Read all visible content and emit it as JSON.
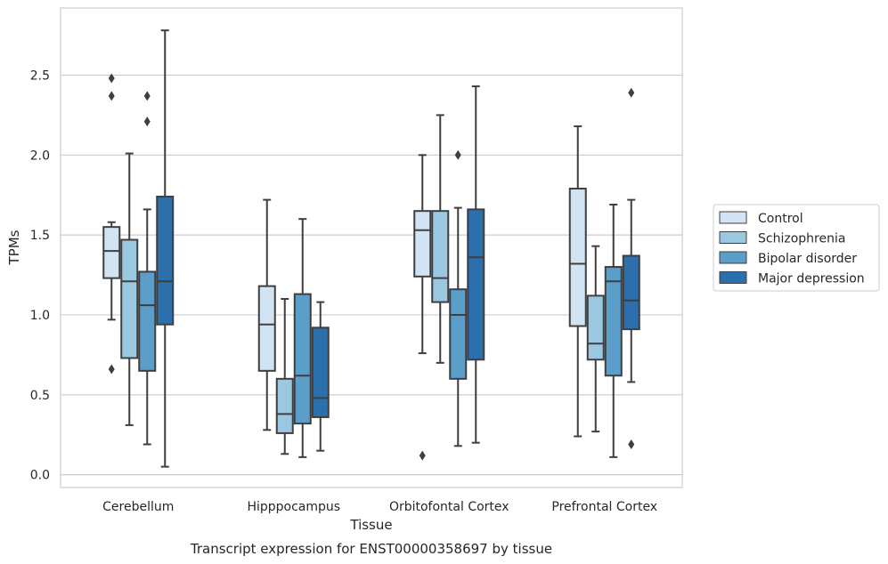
{
  "chart_data": {
    "type": "box",
    "caption": "Transcript expression for ENST00000358697 by tissue",
    "xlabel": "Tissue",
    "ylabel": "TPMs",
    "ylim": [
      -0.08,
      2.92
    ],
    "yticks": [
      "0.0",
      "0.5",
      "1.0",
      "1.5",
      "2.0",
      "2.5"
    ],
    "grid": "horizontal",
    "legend_position": "right",
    "categories": [
      "Cerebellum",
      "Hipppocampus",
      "Orbitofontal Cortex",
      "Prefrontal Cortex"
    ],
    "series": [
      {
        "name": "Control",
        "color": "#d2e3f3",
        "boxes": [
          {
            "whislo": 0.97,
            "q1": 1.23,
            "med": 1.4,
            "q3": 1.55,
            "whishi": 1.58,
            "fliers": [
              2.48,
              2.37,
              0.66
            ]
          },
          {
            "whislo": 0.28,
            "q1": 0.65,
            "med": 0.94,
            "q3": 1.18,
            "whishi": 1.72,
            "fliers": []
          },
          {
            "whislo": 0.76,
            "q1": 1.24,
            "med": 1.53,
            "q3": 1.65,
            "whishi": 2.0,
            "fliers": [
              0.12
            ]
          },
          {
            "whislo": 0.24,
            "q1": 0.93,
            "med": 1.32,
            "q3": 1.79,
            "whishi": 2.18,
            "fliers": []
          }
        ]
      },
      {
        "name": "Schizophrenia",
        "color": "#9ac8e0",
        "boxes": [
          {
            "whislo": 0.31,
            "q1": 0.73,
            "med": 1.21,
            "q3": 1.47,
            "whishi": 2.01,
            "fliers": []
          },
          {
            "whislo": 0.13,
            "q1": 0.26,
            "med": 0.38,
            "q3": 0.6,
            "whishi": 1.1,
            "fliers": []
          },
          {
            "whislo": 0.7,
            "q1": 1.08,
            "med": 1.23,
            "q3": 1.65,
            "whishi": 2.25,
            "fliers": []
          },
          {
            "whislo": 0.27,
            "q1": 0.72,
            "med": 0.82,
            "q3": 1.12,
            "whishi": 1.43,
            "fliers": []
          }
        ]
      },
      {
        "name": "Bipolar disorder",
        "color": "#5a9ec9",
        "boxes": [
          {
            "whislo": 0.19,
            "q1": 0.65,
            "med": 1.06,
            "q3": 1.27,
            "whishi": 1.66,
            "fliers": [
              2.37,
              2.21
            ]
          },
          {
            "whislo": 0.11,
            "q1": 0.32,
            "med": 0.62,
            "q3": 1.13,
            "whishi": 1.6,
            "fliers": []
          },
          {
            "whislo": 0.18,
            "q1": 0.6,
            "med": 1.0,
            "q3": 1.16,
            "whishi": 1.67,
            "fliers": [
              2.0
            ]
          },
          {
            "whislo": 0.11,
            "q1": 0.62,
            "med": 1.21,
            "q3": 1.3,
            "whishi": 1.69,
            "fliers": []
          }
        ]
      },
      {
        "name": "Major depression",
        "color": "#2c6fad",
        "boxes": [
          {
            "whislo": 0.05,
            "q1": 0.94,
            "med": 1.21,
            "q3": 1.74,
            "whishi": 2.78,
            "fliers": []
          },
          {
            "whislo": 0.15,
            "q1": 0.36,
            "med": 0.48,
            "q3": 0.92,
            "whishi": 1.08,
            "fliers": []
          },
          {
            "whislo": 0.2,
            "q1": 0.72,
            "med": 1.36,
            "q3": 1.66,
            "whishi": 2.43,
            "fliers": []
          },
          {
            "whislo": 0.58,
            "q1": 0.91,
            "med": 1.09,
            "q3": 1.37,
            "whishi": 1.72,
            "fliers": [
              2.39,
              0.19
            ]
          }
        ]
      }
    ]
  }
}
